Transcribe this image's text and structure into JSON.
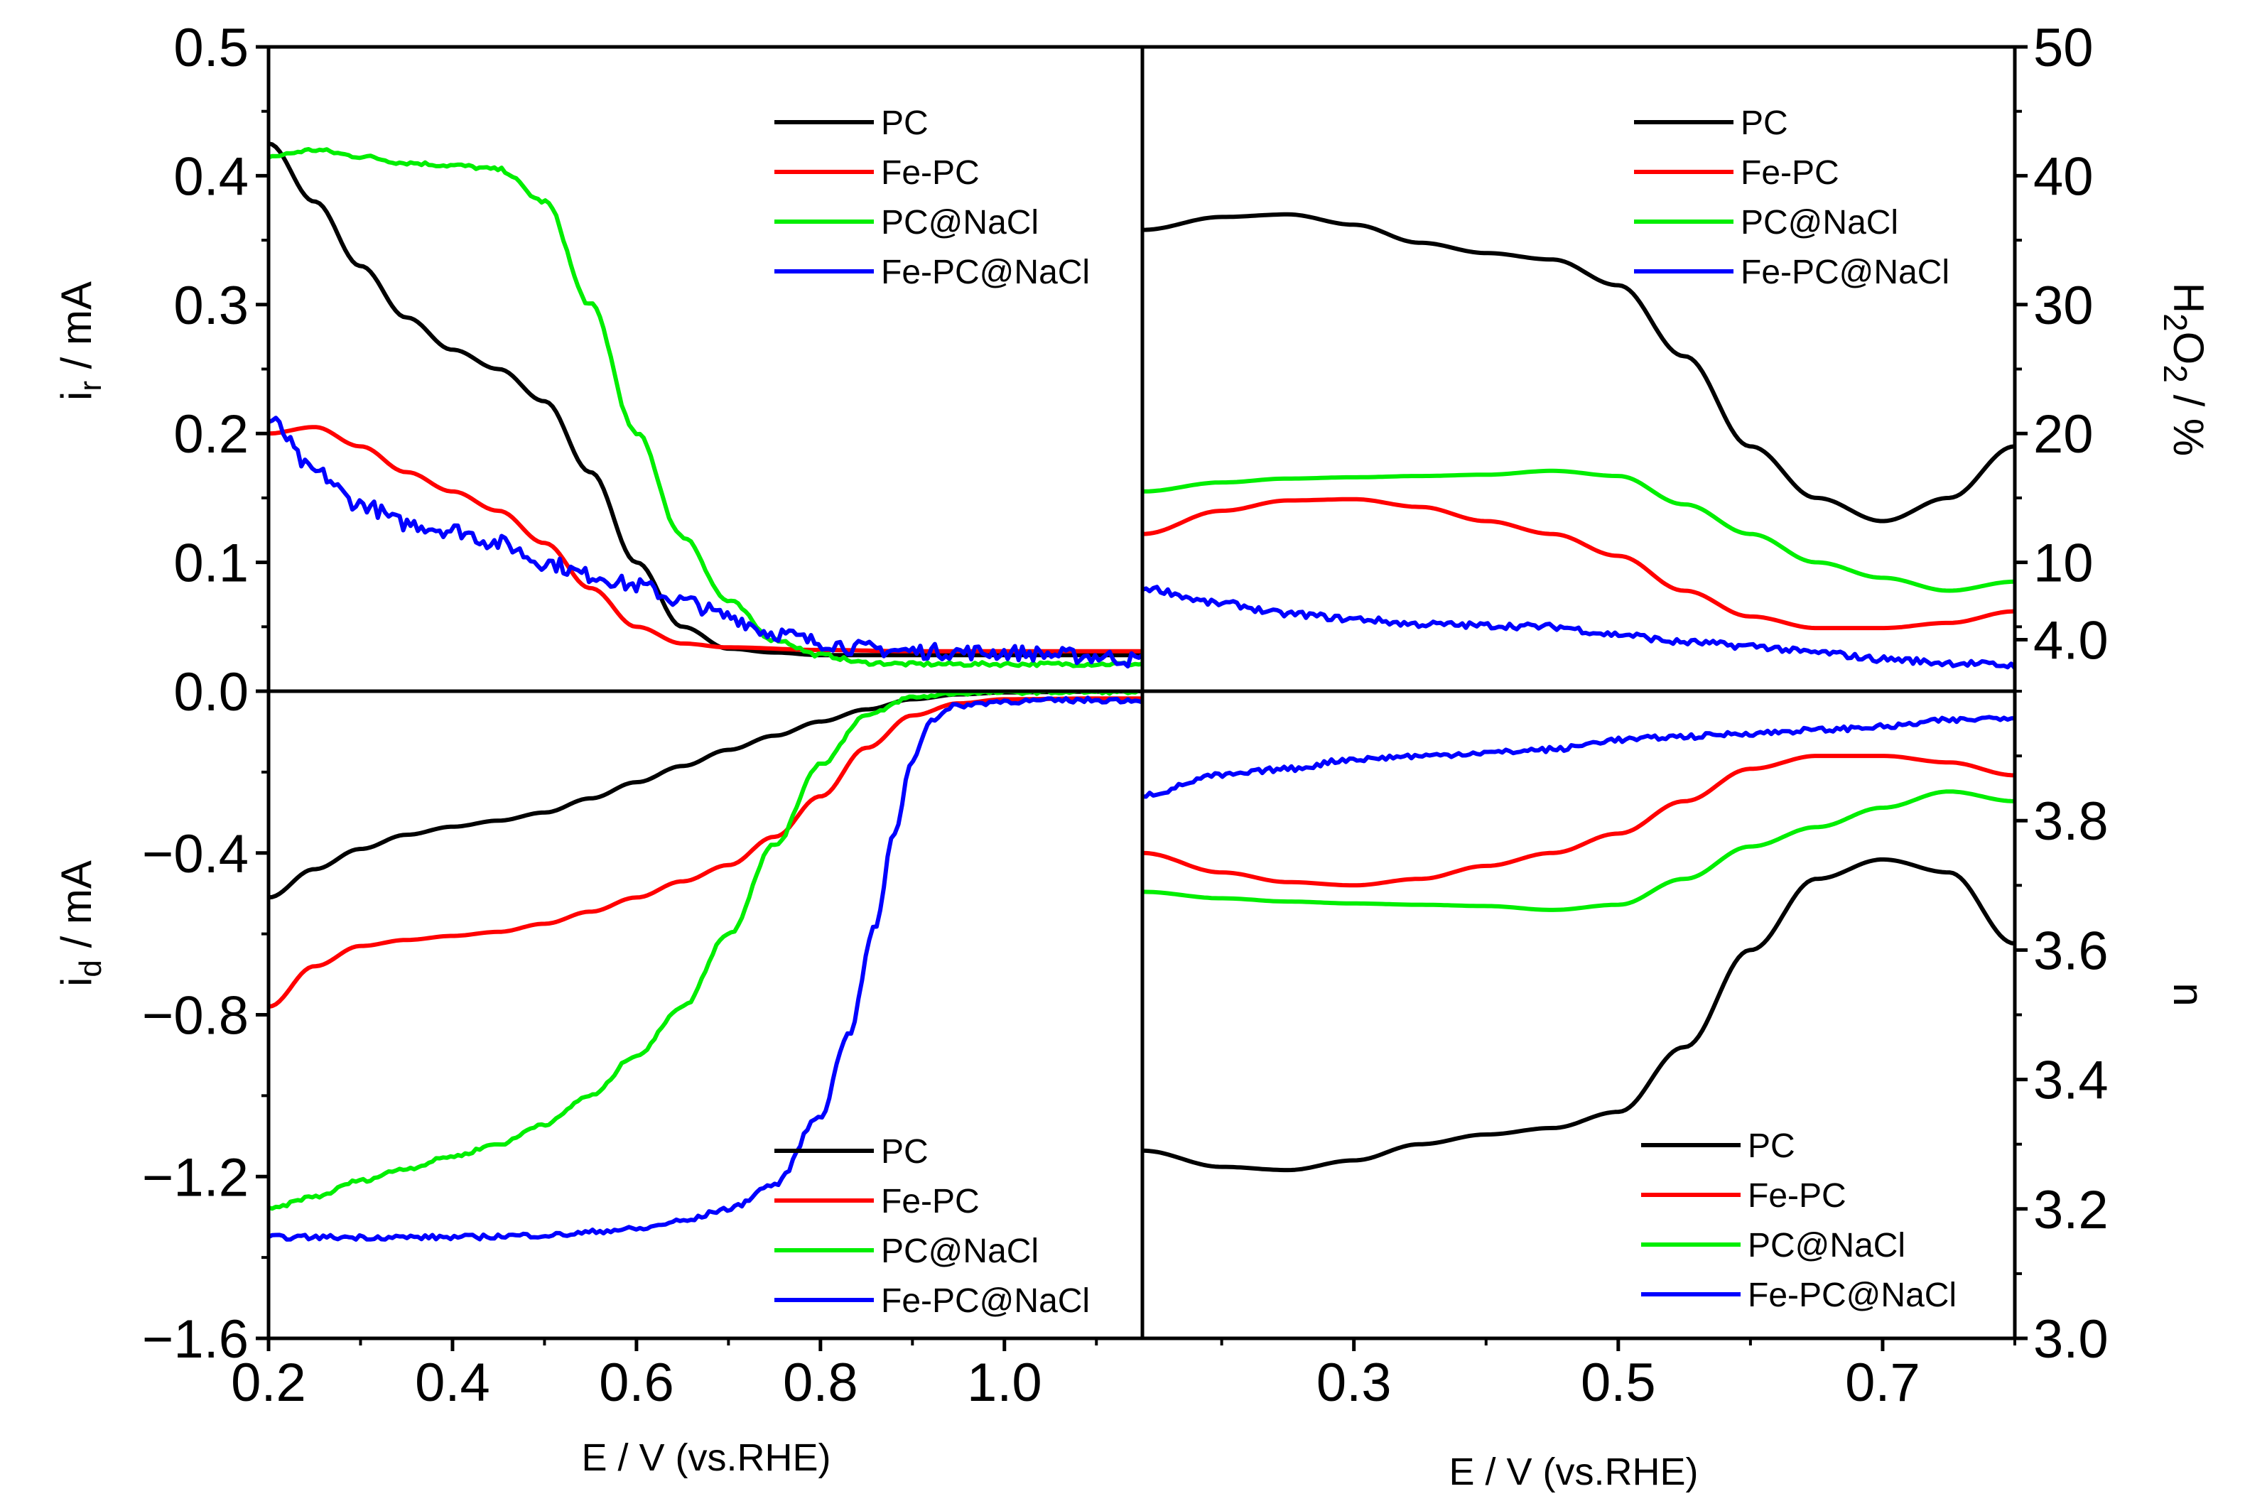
{
  "colors": {
    "PC": "#000000",
    "Fe-PC": "#ff0000",
    "PC@NaCl": "#00ee00",
    "Fe-PC@NaCl": "#0000ff"
  },
  "chart_data": [
    {
      "id": "ring-current",
      "type": "line",
      "panel": "top-left",
      "ylabel": "i_r / mA",
      "ylabel_main": "i",
      "ylabel_sub": "r",
      "ylabel_rest": " / mA",
      "xlim": [
        0.2,
        1.15
      ],
      "ylim": [
        0.0,
        0.5
      ],
      "yticks": [
        0.0,
        0.1,
        0.2,
        0.3,
        0.4,
        0.5
      ],
      "ytick_labels": [
        "0.0",
        "0.1",
        "0.2",
        "0.3",
        "0.4",
        "0.5"
      ],
      "legend_position": "top-right",
      "legend": [
        "PC",
        "Fe-PC",
        "PC@NaCl",
        "Fe-PC@NaCl"
      ],
      "series": [
        {
          "name": "PC",
          "x": [
            0.2,
            0.25,
            0.3,
            0.35,
            0.4,
            0.45,
            0.5,
            0.55,
            0.6,
            0.65,
            0.7,
            0.75,
            0.8,
            0.85,
            0.9,
            1.0,
            1.1,
            1.15
          ],
          "y": [
            0.425,
            0.38,
            0.33,
            0.29,
            0.265,
            0.25,
            0.225,
            0.17,
            0.1,
            0.05,
            0.033,
            0.03,
            0.028,
            0.028,
            0.028,
            0.028,
            0.028,
            0.028
          ]
        },
        {
          "name": "Fe-PC",
          "x": [
            0.2,
            0.25,
            0.3,
            0.35,
            0.4,
            0.45,
            0.5,
            0.55,
            0.6,
            0.65,
            0.7,
            0.8,
            0.9,
            1.0,
            1.1,
            1.15
          ],
          "y": [
            0.2,
            0.205,
            0.19,
            0.17,
            0.155,
            0.14,
            0.115,
            0.08,
            0.05,
            0.037,
            0.034,
            0.032,
            0.031,
            0.031,
            0.031,
            0.031
          ]
        },
        {
          "name": "PC@NaCl",
          "x": [
            0.2,
            0.25,
            0.3,
            0.35,
            0.4,
            0.45,
            0.5,
            0.55,
            0.6,
            0.65,
            0.7,
            0.75,
            0.8,
            0.85,
            0.9,
            1.0,
            1.1,
            1.15
          ],
          "y": [
            0.415,
            0.42,
            0.415,
            0.41,
            0.408,
            0.405,
            0.38,
            0.3,
            0.2,
            0.12,
            0.07,
            0.04,
            0.028,
            0.022,
            0.021,
            0.021,
            0.021,
            0.021
          ]
        },
        {
          "name": "Fe-PC@NaCl",
          "x": [
            0.2,
            0.25,
            0.3,
            0.35,
            0.4,
            0.45,
            0.5,
            0.55,
            0.6,
            0.65,
            0.7,
            0.75,
            0.8,
            0.85,
            0.9,
            1.0,
            1.1,
            1.15
          ],
          "y": [
            0.21,
            0.17,
            0.145,
            0.13,
            0.125,
            0.115,
            0.1,
            0.09,
            0.082,
            0.07,
            0.058,
            0.045,
            0.038,
            0.033,
            0.031,
            0.03,
            0.027,
            0.024
          ]
        }
      ]
    },
    {
      "id": "h2o2",
      "type": "line",
      "panel": "top-right",
      "ylabel": "H2O2 / %",
      "ylabel_a": "H",
      "ylabel_b": "2",
      "ylabel_c": "O",
      "ylabel_d": "2",
      "ylabel_e": " / %",
      "xlim": [
        0.14,
        0.8
      ],
      "ylim": [
        0,
        50
      ],
      "yticks": [
        4,
        10,
        20,
        30,
        40,
        50
      ],
      "ytick_labels": [
        "4.0",
        "10",
        "20",
        "30",
        "40",
        "50"
      ],
      "legend_position": "top-right",
      "legend": [
        "PC",
        "Fe-PC",
        "PC@NaCl",
        "Fe-PC@NaCl"
      ],
      "series": [
        {
          "name": "PC",
          "x": [
            0.14,
            0.2,
            0.25,
            0.3,
            0.35,
            0.4,
            0.45,
            0.5,
            0.55,
            0.6,
            0.65,
            0.7,
            0.75,
            0.8
          ],
          "y": [
            35.8,
            36.8,
            37.0,
            36.2,
            34.8,
            34.0,
            33.5,
            31.5,
            26.0,
            19.0,
            15.0,
            13.2,
            15.0,
            19.0
          ]
        },
        {
          "name": "Fe-PC",
          "x": [
            0.14,
            0.2,
            0.25,
            0.3,
            0.35,
            0.4,
            0.45,
            0.5,
            0.55,
            0.6,
            0.65,
            0.7,
            0.75,
            0.8
          ],
          "y": [
            12.2,
            14.0,
            14.8,
            14.9,
            14.3,
            13.2,
            12.2,
            10.5,
            7.8,
            5.8,
            4.9,
            4.9,
            5.3,
            6.2
          ]
        },
        {
          "name": "PC@NaCl",
          "x": [
            0.14,
            0.2,
            0.25,
            0.3,
            0.35,
            0.4,
            0.45,
            0.5,
            0.55,
            0.6,
            0.65,
            0.7,
            0.75,
            0.8
          ],
          "y": [
            15.5,
            16.2,
            16.5,
            16.6,
            16.7,
            16.8,
            17.1,
            16.7,
            14.5,
            12.2,
            10.0,
            8.8,
            7.8,
            8.5
          ]
        },
        {
          "name": "Fe-PC@NaCl",
          "x": [
            0.14,
            0.2,
            0.25,
            0.3,
            0.35,
            0.4,
            0.45,
            0.5,
            0.55,
            0.6,
            0.65,
            0.7,
            0.75,
            0.8
          ],
          "y": [
            8.0,
            6.8,
            6.0,
            5.6,
            5.2,
            5.1,
            5.0,
            4.4,
            3.8,
            3.5,
            3.0,
            2.5,
            2.2,
            2.0
          ]
        }
      ]
    },
    {
      "id": "disk-current",
      "type": "line",
      "panel": "bottom-left",
      "ylabel": "i_d / mA",
      "ylabel_main": "i",
      "ylabel_sub": "d",
      "ylabel_rest": " / mA",
      "xlabel": "E / V (vs.RHE)",
      "xlim": [
        0.2,
        1.15
      ],
      "ylim": [
        -1.6,
        0.0
      ],
      "xticks": [
        0.2,
        0.4,
        0.6,
        0.8,
        1.0
      ],
      "xtick_labels": [
        "0.2",
        "0.4",
        "0.6",
        "0.8",
        "1.0"
      ],
      "yticks": [
        -1.6,
        -1.2,
        -0.8,
        -0.4
      ],
      "ytick_labels": [
        "−1.6",
        "−1.2",
        "−0.8",
        "−0.4"
      ],
      "legend_position": "bottom-right",
      "legend": [
        "PC",
        "Fe-PC",
        "PC@NaCl",
        "Fe-PC@NaCl"
      ],
      "series": [
        {
          "name": "PC",
          "x": [
            0.2,
            0.25,
            0.3,
            0.35,
            0.4,
            0.45,
            0.5,
            0.55,
            0.6,
            0.65,
            0.7,
            0.75,
            0.8,
            0.85,
            0.9,
            0.95,
            1.0,
            1.1,
            1.15
          ],
          "y": [
            -0.51,
            -0.44,
            -0.39,
            -0.355,
            -0.335,
            -0.32,
            -0.3,
            -0.265,
            -0.225,
            -0.185,
            -0.145,
            -0.11,
            -0.075,
            -0.045,
            -0.02,
            -0.008,
            -0.003,
            -0.001,
            0.0
          ]
        },
        {
          "name": "Fe-PC",
          "x": [
            0.2,
            0.25,
            0.3,
            0.35,
            0.4,
            0.45,
            0.5,
            0.55,
            0.6,
            0.65,
            0.7,
            0.75,
            0.8,
            0.85,
            0.9,
            0.95,
            1.0,
            1.1,
            1.15
          ],
          "y": [
            -0.78,
            -0.68,
            -0.63,
            -0.615,
            -0.605,
            -0.595,
            -0.575,
            -0.545,
            -0.51,
            -0.47,
            -0.43,
            -0.36,
            -0.26,
            -0.14,
            -0.06,
            -0.03,
            -0.02,
            -0.018,
            -0.018
          ]
        },
        {
          "name": "PC@NaCl",
          "x": [
            0.2,
            0.25,
            0.3,
            0.35,
            0.4,
            0.45,
            0.5,
            0.55,
            0.6,
            0.65,
            0.7,
            0.75,
            0.8,
            0.85,
            0.9,
            0.95,
            1.0,
            1.1,
            1.15
          ],
          "y": [
            -1.28,
            -1.25,
            -1.21,
            -1.18,
            -1.15,
            -1.12,
            -1.07,
            -1.0,
            -0.9,
            -0.78,
            -0.6,
            -0.38,
            -0.18,
            -0.06,
            -0.015,
            -0.005,
            -0.003,
            -0.002,
            -0.002
          ]
        },
        {
          "name": "Fe-PC@NaCl",
          "x": [
            0.2,
            0.3,
            0.4,
            0.5,
            0.6,
            0.65,
            0.7,
            0.75,
            0.8,
            0.83,
            0.86,
            0.88,
            0.9,
            0.92,
            0.95,
            1.0,
            1.1,
            1.15
          ],
          "y": [
            -1.35,
            -1.35,
            -1.35,
            -1.345,
            -1.33,
            -1.31,
            -1.28,
            -1.22,
            -1.05,
            -0.85,
            -0.58,
            -0.35,
            -0.17,
            -0.07,
            -0.035,
            -0.025,
            -0.022,
            -0.022
          ]
        }
      ]
    },
    {
      "id": "electron-number",
      "type": "line",
      "panel": "bottom-right",
      "ylabel": "n",
      "xlabel": "E / V (vs.RHE)",
      "xlim": [
        0.14,
        0.8
      ],
      "ylim": [
        3.0,
        4.0
      ],
      "xticks": [
        0.3,
        0.5,
        0.7
      ],
      "xtick_labels": [
        "0.3",
        "0.5",
        "0.7"
      ],
      "yticks": [
        3.0,
        3.2,
        3.4,
        3.6,
        3.8
      ],
      "ytick_labels": [
        "3.0",
        "3.2",
        "3.4",
        "3.6",
        "3.8"
      ],
      "legend_position": "bottom-right",
      "legend": [
        "PC",
        "Fe-PC",
        "PC@NaCl",
        "Fe-PC@NaCl"
      ],
      "series": [
        {
          "name": "PC",
          "x": [
            0.14,
            0.2,
            0.25,
            0.3,
            0.35,
            0.4,
            0.45,
            0.5,
            0.55,
            0.6,
            0.65,
            0.7,
            0.75,
            0.8
          ],
          "y": [
            3.29,
            3.265,
            3.26,
            3.275,
            3.3,
            3.315,
            3.325,
            3.35,
            3.45,
            3.6,
            3.71,
            3.74,
            3.72,
            3.61
          ]
        },
        {
          "name": "Fe-PC",
          "x": [
            0.14,
            0.2,
            0.25,
            0.3,
            0.35,
            0.4,
            0.45,
            0.5,
            0.55,
            0.6,
            0.65,
            0.7,
            0.75,
            0.8
          ],
          "y": [
            3.75,
            3.72,
            3.705,
            3.7,
            3.71,
            3.73,
            3.75,
            3.78,
            3.83,
            3.88,
            3.9,
            3.9,
            3.89,
            3.87
          ]
        },
        {
          "name": "PC@NaCl",
          "x": [
            0.14,
            0.2,
            0.25,
            0.3,
            0.35,
            0.4,
            0.45,
            0.5,
            0.55,
            0.6,
            0.65,
            0.7,
            0.75,
            0.8
          ],
          "y": [
            3.69,
            3.68,
            3.675,
            3.672,
            3.67,
            3.668,
            3.662,
            3.67,
            3.71,
            3.76,
            3.79,
            3.82,
            3.845,
            3.83
          ]
        },
        {
          "name": "Fe-PC@NaCl",
          "x": [
            0.14,
            0.2,
            0.25,
            0.3,
            0.35,
            0.4,
            0.45,
            0.5,
            0.55,
            0.6,
            0.65,
            0.7,
            0.75,
            0.8
          ],
          "y": [
            3.84,
            3.87,
            3.88,
            3.895,
            3.9,
            3.905,
            3.91,
            3.925,
            3.93,
            3.935,
            3.94,
            3.945,
            3.955,
            3.96
          ]
        }
      ]
    }
  ]
}
